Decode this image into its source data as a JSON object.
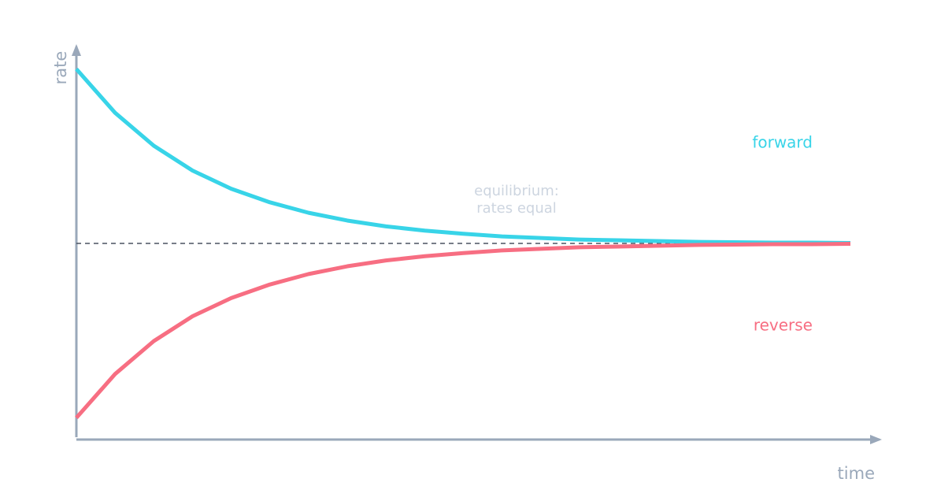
{
  "chart_data": {
    "type": "line",
    "x_label": "time",
    "y_label": "rate",
    "x": [
      0,
      0.5,
      1,
      1.5,
      2,
      2.5,
      3,
      3.5,
      4,
      4.5,
      5,
      5.5,
      6,
      6.5,
      7,
      7.5,
      8,
      8.5,
      9,
      9.5,
      10
    ],
    "series": [
      {
        "name": "forward",
        "color": "#38d4e8",
        "values": [
          0.95,
          0.837,
          0.752,
          0.688,
          0.641,
          0.606,
          0.579,
          0.559,
          0.544,
          0.533,
          0.525,
          0.518,
          0.514,
          0.51,
          0.508,
          0.506,
          0.504,
          0.503,
          0.502,
          0.502,
          0.501
        ]
      },
      {
        "name": "reverse",
        "color": "#f76e82",
        "values": [
          0.05,
          0.163,
          0.248,
          0.312,
          0.359,
          0.394,
          0.421,
          0.441,
          0.456,
          0.467,
          0.475,
          0.482,
          0.486,
          0.49,
          0.492,
          0.494,
          0.496,
          0.497,
          0.498,
          0.498,
          0.499
        ]
      }
    ],
    "reference_line": 0.5,
    "annotation": [
      "equilibrium:",
      "rates equal"
    ],
    "xlim": [
      0,
      10
    ],
    "ylim": [
      0,
      1
    ],
    "grid": false
  }
}
